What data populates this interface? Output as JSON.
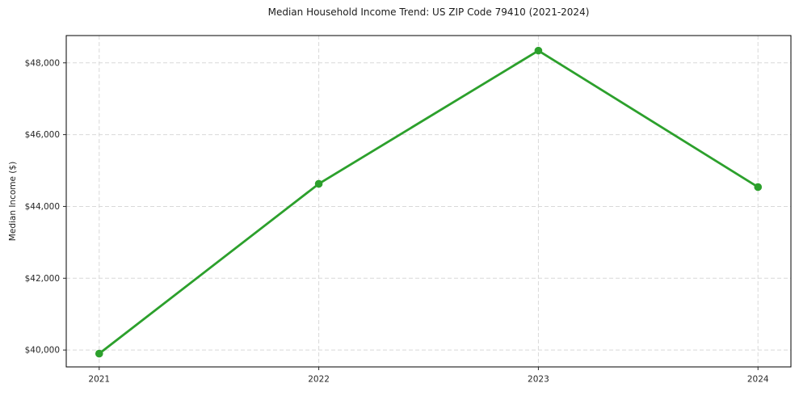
{
  "chart_data": {
    "type": "line",
    "title": "Median Household Income Trend: US ZIP Code 79410 (2021-2024)",
    "xlabel": "",
    "ylabel": "Median Income ($)",
    "categories": [
      "2021",
      "2022",
      "2023",
      "2024"
    ],
    "series": [
      {
        "name": "Median Household Income",
        "values": [
          39900,
          44630,
          48340,
          44540
        ],
        "color": "#2ca02c",
        "marker": "circle"
      }
    ],
    "y_ticks": [
      {
        "value": 40000,
        "label": "$40,000"
      },
      {
        "value": 42000,
        "label": "$42,000"
      },
      {
        "value": 44000,
        "label": "$44,000"
      },
      {
        "value": 46000,
        "label": "$46,000"
      },
      {
        "value": 48000,
        "label": "$48,000"
      }
    ],
    "ylim": [
      39530,
      48760
    ],
    "grid": true,
    "grid_style": "dashed",
    "legend": "none",
    "colors": {
      "line": "#2ca02c",
      "grid": "#d9d9d9",
      "spine": "#000000",
      "text": "#262626",
      "background": "#ffffff"
    }
  }
}
